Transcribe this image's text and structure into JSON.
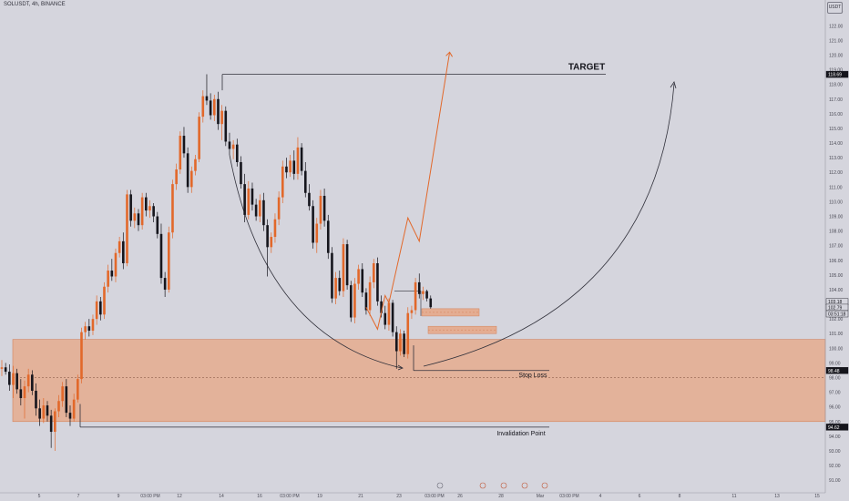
{
  "header": {
    "symbol": "SOLUSDT, 4h, BINANCE",
    "currency": "USDT"
  },
  "colors": {
    "background": "#d5d5dd",
    "up_candle": "#e2682a",
    "down_candle": "#15151c",
    "zone_fill": "#e6a98a",
    "zone_stroke": "#d4835c",
    "projection": "#e2682a",
    "annotation_line": "#30303a"
  },
  "chart_data": {
    "type": "candlestick",
    "title": "",
    "y_axis": {
      "ticks": [
        91.0,
        92.0,
        93.0,
        94.0,
        95.0,
        96.0,
        97.0,
        98.0,
        99.0,
        100.0,
        101.0,
        102.0,
        103.0,
        104.0,
        105.0,
        106.0,
        107.0,
        108.0,
        109.0,
        110.0,
        111.0,
        112.0,
        113.0,
        114.0,
        115.0,
        116.0,
        117.0,
        118.0,
        119.0,
        120.0,
        121.0,
        122.0,
        123.0
      ],
      "range": [
        90.2,
        123.7
      ],
      "scale": "linear"
    },
    "x_axis": {
      "ticks": [
        "5",
        "7",
        "9",
        "03:00 PM",
        "12",
        "14",
        "16",
        "03:00 PM",
        "19",
        "21",
        "23",
        "03:00 PM",
        "26",
        "28",
        "Mar",
        "03:00 PM",
        "4",
        "6",
        "8",
        "11",
        "13",
        "15"
      ]
    },
    "price_labels": [
      {
        "text": "118.69",
        "value": 118.69,
        "style": "dark"
      },
      {
        "text": "103.18",
        "value": 103.18,
        "style": "outline"
      },
      {
        "text": "102.79",
        "value": 102.79,
        "style": "outline"
      },
      {
        "text": "03:51:18",
        "value": 102.35,
        "style": "outline"
      },
      {
        "text": "98.48",
        "value": 98.48,
        "style": "dark"
      },
      {
        "text": "94.62",
        "value": 94.62,
        "style": "dark"
      }
    ],
    "annotations": [
      {
        "text": "TARGET",
        "value": 118.69
      },
      {
        "text": "Stop Loss",
        "value": 98.48
      },
      {
        "text": "Invalidation Point",
        "value": 94.62
      }
    ],
    "zones": [
      {
        "name": "demand",
        "low": 95.0,
        "high": 100.6
      },
      {
        "name": "entry-1",
        "low": 102.2,
        "high": 102.7
      },
      {
        "name": "entry-2",
        "low": 101.0,
        "high": 101.5
      }
    ],
    "candles": [
      [
        98.6,
        99.2,
        98.1,
        98.7
      ],
      [
        98.7,
        99.0,
        98.2,
        98.4
      ],
      [
        98.4,
        98.9,
        97.1,
        97.5
      ],
      [
        97.5,
        98.8,
        96.6,
        98.3
      ],
      [
        98.3,
        98.6,
        96.9,
        97.2
      ],
      [
        97.2,
        97.9,
        96.1,
        96.6
      ],
      [
        96.6,
        97.8,
        95.2,
        97.4
      ],
      [
        97.4,
        98.6,
        97.0,
        98.2
      ],
      [
        98.2,
        98.5,
        96.8,
        97.1
      ],
      [
        97.1,
        97.6,
        95.4,
        95.9
      ],
      [
        95.9,
        96.5,
        94.7,
        95.2
      ],
      [
        95.2,
        96.6,
        94.9,
        96.1
      ],
      [
        96.1,
        96.4,
        95.0,
        95.4
      ],
      [
        95.4,
        95.8,
        93.2,
        94.3
      ],
      [
        94.3,
        95.9,
        93.0,
        95.7
      ],
      [
        95.7,
        96.8,
        95.3,
        96.4
      ],
      [
        96.4,
        97.7,
        96.0,
        97.4
      ],
      [
        97.4,
        97.9,
        95.3,
        95.6
      ],
      [
        95.6,
        96.1,
        94.7,
        95.2
      ],
      [
        95.2,
        96.9,
        95.0,
        96.5
      ],
      [
        96.5,
        98.2,
        96.3,
        97.9
      ],
      [
        97.9,
        101.4,
        97.6,
        101.1
      ],
      [
        101.1,
        101.8,
        100.6,
        101.5
      ],
      [
        101.5,
        102.0,
        100.8,
        101.2
      ],
      [
        101.2,
        102.3,
        100.9,
        102.0
      ],
      [
        102.0,
        103.6,
        101.6,
        103.2
      ],
      [
        103.2,
        103.5,
        101.9,
        102.3
      ],
      [
        102.3,
        104.5,
        102.0,
        104.2
      ],
      [
        104.2,
        105.7,
        103.8,
        105.3
      ],
      [
        105.3,
        106.1,
        104.6,
        104.9
      ],
      [
        104.9,
        106.8,
        104.5,
        106.5
      ],
      [
        106.5,
        107.6,
        106.2,
        107.3
      ],
      [
        107.3,
        107.9,
        105.4,
        105.8
      ],
      [
        105.8,
        110.8,
        105.6,
        110.5
      ],
      [
        110.5,
        110.8,
        108.3,
        108.7
      ],
      [
        108.7,
        109.6,
        108.2,
        109.2
      ],
      [
        109.2,
        109.5,
        108.0,
        108.4
      ],
      [
        108.4,
        110.6,
        108.1,
        110.3
      ],
      [
        110.3,
        110.6,
        109.0,
        109.4
      ],
      [
        109.4,
        110.1,
        108.9,
        109.7
      ],
      [
        109.7,
        109.9,
        108.6,
        109.0
      ],
      [
        109.0,
        109.3,
        107.5,
        107.8
      ],
      [
        107.8,
        108.5,
        104.4,
        104.8
      ],
      [
        104.8,
        105.2,
        103.5,
        104.0
      ],
      [
        104.0,
        108.3,
        103.8,
        107.9
      ],
      [
        107.9,
        111.5,
        107.5,
        111.2
      ],
      [
        111.2,
        112.6,
        110.8,
        112.2
      ],
      [
        112.2,
        114.8,
        111.9,
        114.5
      ],
      [
        114.5,
        115.1,
        113.0,
        113.3
      ],
      [
        113.3,
        113.7,
        110.6,
        111.0
      ],
      [
        111.0,
        112.4,
        110.6,
        112.1
      ],
      [
        112.1,
        113.2,
        111.8,
        112.9
      ],
      [
        112.9,
        116.1,
        112.7,
        115.8
      ],
      [
        115.8,
        117.6,
        115.4,
        117.2
      ],
      [
        117.2,
        118.7,
        116.6,
        116.9
      ],
      [
        116.9,
        117.4,
        115.6,
        115.9
      ],
      [
        115.9,
        117.3,
        115.5,
        117.0
      ],
      [
        117.0,
        117.5,
        114.9,
        115.3
      ],
      [
        115.3,
        116.6,
        114.2,
        116.2
      ],
      [
        116.2,
        116.5,
        113.8,
        114.1
      ],
      [
        114.1,
        114.7,
        113.2,
        113.6
      ],
      [
        113.6,
        114.2,
        112.9,
        113.9
      ],
      [
        113.9,
        114.3,
        112.4,
        112.7
      ],
      [
        112.7,
        113.1,
        110.9,
        111.2
      ],
      [
        111.2,
        111.9,
        108.6,
        109.1
      ],
      [
        109.1,
        111.4,
        108.8,
        110.9
      ],
      [
        110.9,
        111.3,
        109.4,
        109.8
      ],
      [
        109.8,
        110.2,
        108.7,
        109.0
      ],
      [
        109.0,
        110.5,
        108.6,
        110.1
      ],
      [
        110.1,
        110.6,
        108.0,
        108.4
      ],
      [
        108.4,
        108.8,
        104.9,
        106.9
      ],
      [
        106.9,
        107.9,
        106.5,
        107.6
      ],
      [
        107.6,
        109.2,
        107.2,
        108.8
      ],
      [
        108.8,
        110.7,
        108.4,
        110.3
      ],
      [
        110.3,
        112.8,
        109.9,
        112.4
      ],
      [
        112.4,
        113.0,
        111.6,
        112.0
      ],
      [
        112.0,
        113.2,
        111.7,
        112.8
      ],
      [
        112.8,
        113.5,
        111.5,
        111.9
      ],
      [
        111.9,
        114.4,
        111.5,
        113.7
      ],
      [
        113.7,
        114.0,
        111.8,
        112.1
      ],
      [
        112.1,
        112.7,
        110.3,
        110.6
      ],
      [
        110.6,
        111.2,
        109.4,
        109.7
      ],
      [
        109.7,
        110.1,
        106.8,
        107.2
      ],
      [
        107.2,
        108.9,
        106.5,
        108.5
      ],
      [
        108.5,
        110.8,
        108.1,
        110.4
      ],
      [
        110.4,
        110.9,
        108.3,
        108.7
      ],
      [
        108.7,
        109.1,
        106.1,
        106.5
      ],
      [
        106.5,
        106.9,
        103.1,
        103.4
      ],
      [
        103.4,
        105.2,
        103.0,
        104.8
      ],
      [
        104.8,
        105.3,
        103.6,
        103.9
      ],
      [
        103.9,
        107.5,
        103.5,
        107.1
      ],
      [
        107.1,
        107.4,
        104.0,
        104.3
      ],
      [
        104.3,
        104.6,
        101.8,
        102.1
      ],
      [
        102.1,
        104.8,
        101.7,
        104.4
      ],
      [
        104.4,
        105.7,
        104.0,
        105.4
      ],
      [
        105.4,
        105.8,
        103.5,
        103.8
      ],
      [
        103.8,
        104.1,
        102.3,
        102.6
      ],
      [
        102.6,
        104.9,
        102.2,
        104.5
      ],
      [
        104.5,
        106.1,
        104.1,
        105.8
      ],
      [
        105.8,
        106.2,
        102.9,
        103.2
      ],
      [
        103.2,
        103.6,
        102.1,
        102.4
      ],
      [
        102.4,
        102.9,
        101.3,
        101.6
      ],
      [
        101.6,
        103.4,
        101.2,
        103.1
      ],
      [
        103.1,
        103.3,
        100.8,
        101.1
      ],
      [
        101.1,
        101.5,
        98.6,
        99.8
      ],
      [
        99.8,
        101.3,
        99.5,
        101.0
      ],
      [
        101.0,
        101.2,
        99.4,
        99.6
      ],
      [
        99.6,
        102.8,
        99.3,
        102.4
      ],
      [
        102.4,
        102.9,
        102.0,
        102.6
      ],
      [
        102.6,
        104.8,
        102.3,
        104.5
      ],
      [
        104.5,
        105.1,
        103.4,
        103.7
      ],
      [
        103.7,
        104.2,
        103.3,
        103.9
      ],
      [
        103.9,
        104.0,
        103.2,
        103.4
      ],
      [
        103.4,
        103.6,
        102.7,
        102.8
      ]
    ],
    "projection_path": [
      [
        96,
        102.8
      ],
      [
        99,
        101.3
      ],
      [
        101,
        103.6
      ],
      [
        102,
        103.1
      ],
      [
        107,
        108.9
      ],
      [
        110,
        107.3
      ],
      [
        118,
        120.2
      ]
    ]
  }
}
